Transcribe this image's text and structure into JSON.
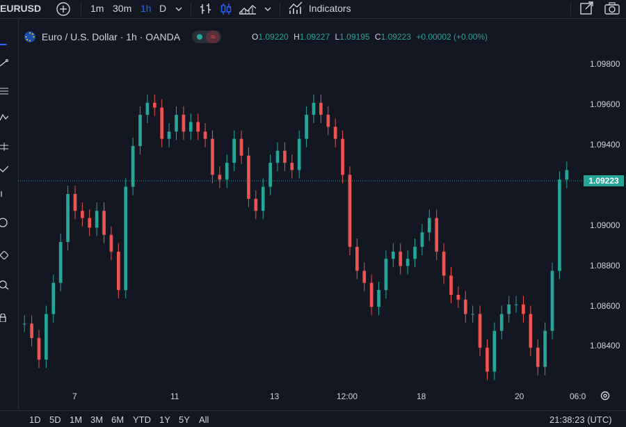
{
  "toolbar": {
    "symbol": "EURUSD",
    "intervals": [
      "1m",
      "30m",
      "1h",
      "D"
    ],
    "active_interval": "1h",
    "indicators_label": "Indicators"
  },
  "legend": {
    "title": "Euro / U.S. Dollar · 1h · OANDA",
    "open_key": "O",
    "open": "1.09220",
    "high_key": "H",
    "high": "1.09227",
    "low_key": "L",
    "low": "1.09195",
    "close_key": "C",
    "close": "1.09223",
    "change": "+0.00002 (+0.00%)"
  },
  "price_axis": {
    "labels": [
      "1.09800",
      "1.09600",
      "1.09400",
      "1.09000",
      "1.08800",
      "1.08600",
      "1.08400"
    ],
    "current_price": "1.09223"
  },
  "time_axis": {
    "labels": [
      "7",
      "11",
      "13",
      "12:00",
      "18",
      "20",
      "06:0"
    ]
  },
  "bottom": {
    "ranges": [
      "1D",
      "5D",
      "1M",
      "3M",
      "6M",
      "YTD",
      "1Y",
      "5Y",
      "All"
    ],
    "clock": "21:38:23 (UTC)"
  },
  "colors": {
    "up": "#26a69a",
    "down": "#ef5350",
    "background": "#131722",
    "accent": "#2962ff"
  },
  "chart_data": {
    "type": "candlestick",
    "y_range": [
      1.083,
      1.0985
    ],
    "x": [
      "7",
      "11",
      "13",
      "12:00",
      "18",
      "20",
      "06:0"
    ],
    "close_series": [
      1.0858,
      1.0852,
      1.0843,
      1.0862,
      1.0875,
      1.0892,
      1.0912,
      1.0905,
      1.0902,
      1.0898,
      1.0905,
      1.0895,
      1.0888,
      1.0872,
      1.0915,
      1.0932,
      1.0945,
      1.095,
      1.0948,
      1.0935,
      1.0938,
      1.0945,
      1.0938,
      1.0942,
      1.0938,
      1.0935,
      1.092,
      1.0918,
      1.0925,
      1.0935,
      1.0928,
      1.091,
      1.0905,
      1.0915,
      1.0925,
      1.093,
      1.0925,
      1.0922,
      1.0935,
      1.0945,
      1.095,
      1.0945,
      1.094,
      1.0935,
      1.092,
      1.089,
      1.088,
      1.0875,
      1.0865,
      1.0872,
      1.0885,
      1.0888,
      1.0882,
      1.0885,
      1.089,
      1.0896,
      1.0902,
      1.0888,
      1.0878,
      1.087,
      1.0868,
      1.0862,
      1.0862,
      1.0848,
      1.0838,
      1.0855,
      1.0862,
      1.0866,
      1.0866,
      1.0862,
      1.0848,
      1.084,
      1.0855,
      1.088,
      1.0918,
      1.0922
    ]
  }
}
